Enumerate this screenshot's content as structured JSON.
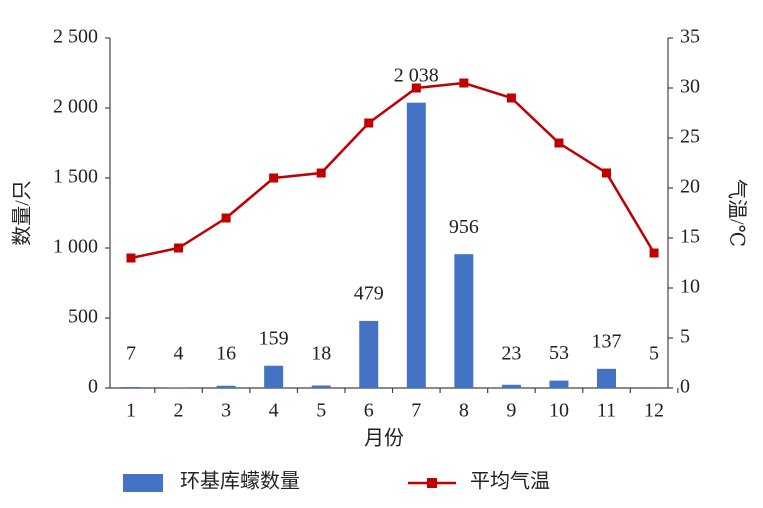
{
  "chart_data": {
    "type": "bar-line",
    "categories": [
      "1",
      "2",
      "3",
      "4",
      "5",
      "6",
      "7",
      "8",
      "9",
      "10",
      "11",
      "12"
    ],
    "x_label": "月份",
    "y_label": "数量/只",
    "y2_label": "气温/℃",
    "series": [
      {
        "name": "环基库蠓数量",
        "type": "bar",
        "color": "#4472c4",
        "values": [
          7,
          4,
          16,
          159,
          18,
          479,
          2038,
          956,
          23,
          53,
          137,
          5
        ],
        "value_labels": [
          "7",
          "4",
          "16",
          "159",
          "18",
          "479",
          "2 038",
          "956",
          "23",
          "53",
          "137",
          "5"
        ]
      },
      {
        "name": "平均气温",
        "type": "line",
        "axis": "y2",
        "color": "#c00000",
        "values": [
          13,
          14,
          17,
          21,
          21.5,
          26.5,
          30,
          30.5,
          29,
          24.5,
          21.5,
          13.5
        ]
      }
    ],
    "ylim": [
      0,
      2500
    ],
    "yticks": [
      0,
      500,
      {
        "value": 1000,
        "label": "1 000"
      },
      {
        "value": 1500,
        "label": "1 500"
      },
      {
        "value": 2000,
        "label": "2 000"
      },
      {
        "value": 2500,
        "label": "2 500"
      }
    ],
    "y2lim": [
      0,
      35
    ],
    "y2ticks": [
      0,
      5,
      10,
      15,
      20,
      25,
      30,
      35
    ],
    "legend": "bottom"
  }
}
